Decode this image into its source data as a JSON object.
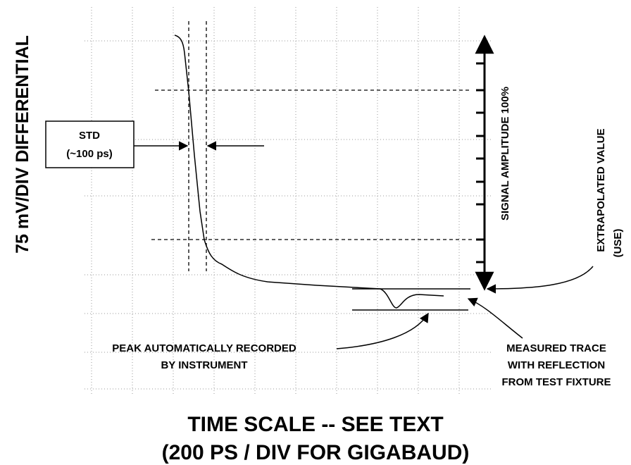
{
  "y_axis_label": "75 mV/DIV DIFFERENTIAL",
  "std_box": {
    "line1": "STD",
    "line2": "(~100 ps)"
  },
  "amplitude_label": "SIGNAL AMPLITUDE 100%",
  "extrapolated_label": {
    "line1": "EXTRAPOLATED VALUE",
    "line2": "(USE)"
  },
  "peak_label": {
    "line1": "PEAK AUTOMATICALLY RECORDED",
    "line2": "BY INSTRUMENT"
  },
  "measured_label": {
    "line1": "MEASURED TRACE",
    "line2": "WITH REFLECTION",
    "line3": "FROM TEST FIXTURE"
  },
  "x_axis_label": {
    "line1": "TIME SCALE -- SEE TEXT",
    "line2": "(200 PS / DIV FOR GIGABAUD)"
  }
}
